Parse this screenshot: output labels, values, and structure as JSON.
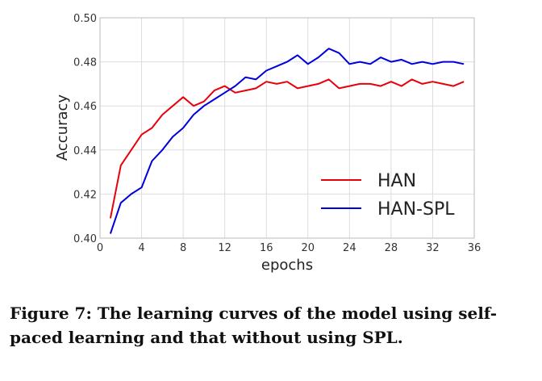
{
  "chart_data": {
    "type": "line",
    "xlabel": "epochs",
    "ylabel": "Accuracy",
    "xlim": [
      0,
      36
    ],
    "ylim": [
      0.4,
      0.5
    ],
    "xticks": [
      "0",
      "4",
      "8",
      "12",
      "16",
      "20",
      "24",
      "28",
      "32",
      "36"
    ],
    "yticks": [
      "0.40",
      "0.42",
      "0.44",
      "0.46",
      "0.48",
      "0.50"
    ],
    "grid": true,
    "legend_position": "lower-right",
    "x": [
      1,
      2,
      3,
      4,
      5,
      6,
      7,
      8,
      9,
      10,
      11,
      12,
      13,
      14,
      15,
      16,
      17,
      18,
      19,
      20,
      21,
      22,
      23,
      24,
      25,
      26,
      27,
      28,
      29,
      30,
      31,
      32,
      33,
      34,
      35
    ],
    "series": [
      {
        "name": "HAN",
        "color": "#e8000b",
        "values": [
          0.409,
          0.433,
          0.44,
          0.447,
          0.45,
          0.456,
          0.46,
          0.464,
          0.46,
          0.462,
          0.467,
          0.469,
          0.466,
          0.467,
          0.468,
          0.471,
          0.47,
          0.471,
          0.468,
          0.469,
          0.47,
          0.472,
          0.468,
          0.469,
          0.47,
          0.47,
          0.469,
          0.471,
          0.469,
          0.472,
          0.47,
          0.471,
          0.47,
          0.469,
          0.471
        ]
      },
      {
        "name": "HAN-SPL",
        "color": "#0000dd",
        "values": [
          0.402,
          0.416,
          0.42,
          0.423,
          0.435,
          0.44,
          0.446,
          0.45,
          0.456,
          0.46,
          0.463,
          0.466,
          0.469,
          0.473,
          0.472,
          0.476,
          0.478,
          0.48,
          0.483,
          0.479,
          0.482,
          0.486,
          0.484,
          0.479,
          0.48,
          0.479,
          0.482,
          0.48,
          0.481,
          0.479,
          0.48,
          0.479,
          0.48,
          0.48,
          0.479
        ]
      }
    ]
  },
  "caption": "Figure 7: The learning curves of the model using self-paced learning and that without using SPL."
}
